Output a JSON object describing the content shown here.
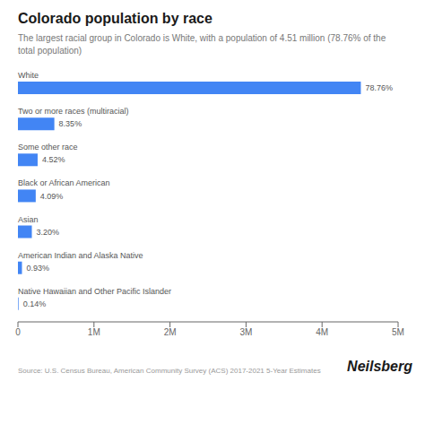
{
  "chart_data": {
    "type": "bar",
    "orientation": "horizontal",
    "title": "Colorado population by race",
    "subtitle": "The largest racial group in Colorado is White, with a population of 4.51 million (78.76% of the\ntotal population)",
    "categories": [
      "White",
      "Two or more races (multiracial)",
      "Some other race",
      "Black or African American",
      "Asian",
      "American Indian and Alaska Native",
      "Native Hawaiian and Other Pacific Islander"
    ],
    "values": [
      4510000,
      479000,
      259000,
      234000,
      183000,
      53000,
      8000
    ],
    "percentages": [
      "78.76%",
      "8.35%",
      "4.52%",
      "4.09%",
      "3.20%",
      "0.93%",
      "0.14%"
    ],
    "color": "#4285F4",
    "xlim": [
      0,
      5000000
    ],
    "xticks": [
      0,
      {
        "value": 1000000,
        "label": "1M"
      },
      {
        "value": 2000000,
        "label": "2M"
      },
      {
        "value": 3000000,
        "label": "3M"
      },
      {
        "value": 4000000,
        "label": "4M"
      },
      {
        "value": 5000000,
        "label": "5M"
      }
    ],
    "grid": false,
    "annotations": [
      "Source: U.S. Census Bureau, American Community Survey (ACS) 2017-2021 5-Year Estimates",
      "Neilsberg"
    ]
  }
}
